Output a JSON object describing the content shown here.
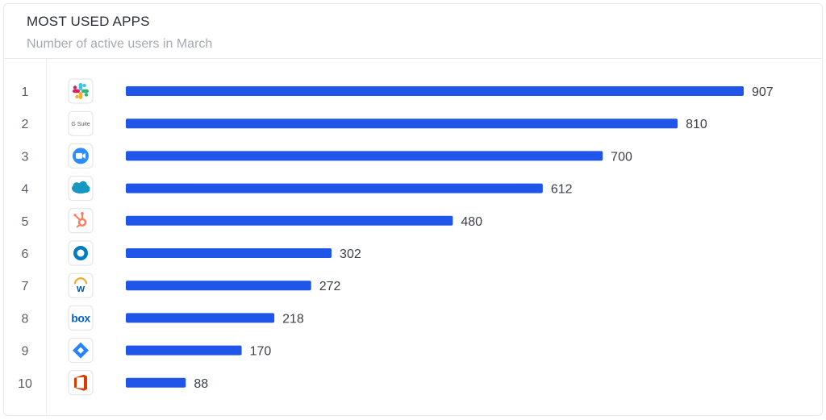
{
  "header": {
    "title": "MOST USED APPS",
    "subtitle": "Number of active users in March"
  },
  "colors": {
    "bar": "#1f55e8",
    "slack": [
      "#36c5f0",
      "#2eb67d",
      "#ecb22e",
      "#e01e5a"
    ],
    "zoom": "#2d8cff",
    "salesforce": "#1798c1",
    "hubspot": "#ff7a59",
    "okta": "#007dc1",
    "workday_orange": "#f5a623",
    "workday_blue": "#0b5ea8",
    "box": "#0061d5",
    "jira": "#2684ff",
    "office": "#d83b01"
  },
  "chart_data": {
    "type": "bar",
    "orientation": "horizontal",
    "title": "MOST USED APPS",
    "subtitle": "Number of active users in March",
    "xlim": [
      0,
      907
    ],
    "grid": false,
    "ranks": [
      "1",
      "2",
      "3",
      "4",
      "5",
      "6",
      "7",
      "8",
      "9",
      "10"
    ],
    "categories": [
      "slack-icon",
      "gsuite-icon",
      "zoom-icon",
      "salesforce-icon",
      "hubspot-icon",
      "okta-icon",
      "workday-icon",
      "box-icon",
      "jira-icon",
      "office-icon"
    ],
    "icon_texts": [
      "",
      "G Suite",
      "",
      "",
      "",
      "",
      "w",
      "box",
      "",
      ""
    ],
    "values": [
      907,
      810,
      700,
      612,
      480,
      302,
      272,
      218,
      170,
      88
    ],
    "value_labels": [
      "907",
      "810",
      "700",
      "612",
      "480",
      "302",
      "272",
      "218",
      "170",
      "88"
    ]
  }
}
